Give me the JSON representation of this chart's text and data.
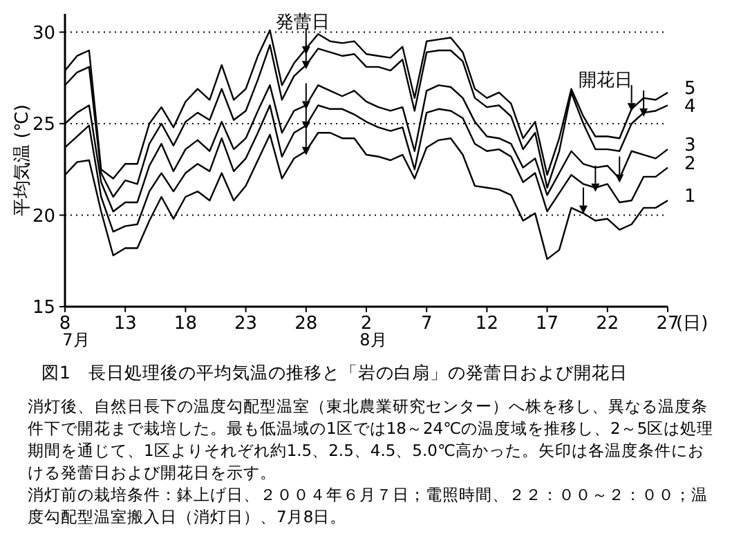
{
  "chart_data": {
    "type": "line",
    "title": "図1　長日処理後の平均気温の推移と「岩の白扇」の発蕾日および開花日",
    "xlabel": "(日)",
    "ylabel": "平均気温 (℃)",
    "x": [
      "--07-08",
      "--07-09",
      "--07-10",
      "--07-11",
      "--07-12",
      "--07-13",
      "--07-14",
      "--07-15",
      "--07-16",
      "--07-17",
      "--07-18",
      "--07-19",
      "--07-20",
      "--07-21",
      "--07-22",
      "--07-23",
      "--07-24",
      "--07-25",
      "--07-26",
      "--07-27",
      "--07-28",
      "--07-29",
      "--07-30",
      "--07-31",
      "--08-01",
      "--08-02",
      "--08-03",
      "--08-04",
      "--08-05",
      "--08-06",
      "--08-07",
      "--08-08",
      "--08-09",
      "--08-10",
      "--08-11",
      "--08-12",
      "--08-13",
      "--08-14",
      "--08-15",
      "--08-16",
      "--08-17",
      "--08-18",
      "--08-19",
      "--08-20",
      "--08-21",
      "--08-22",
      "--08-23",
      "--08-24",
      "--08-25",
      "--08-26",
      "--08-27"
    ],
    "series": [
      {
        "name": "1",
        "color": "#000000",
        "values": [
          22.2,
          22.9,
          23.0,
          20.2,
          17.8,
          18.2,
          18.2,
          19.7,
          21.0,
          19.8,
          21.0,
          21.3,
          20.8,
          22.3,
          20.8,
          21.6,
          23.0,
          24.4,
          22.0,
          23.1,
          23.5,
          24.5,
          24.5,
          24.2,
          24.2,
          23.3,
          23.2,
          23.0,
          23.3,
          22.0,
          23.7,
          24.1,
          24.2,
          23.3,
          21.6,
          21.5,
          21.4,
          21.1,
          19.7,
          20.1,
          17.6,
          18.1,
          20.4,
          20.1,
          19.7,
          19.8,
          19.2,
          19.5,
          20.4,
          20.4,
          20.8
        ]
      },
      {
        "name": "2",
        "color": "#000000",
        "values": [
          23.7,
          24.3,
          24.9,
          21.0,
          19.1,
          19.4,
          19.5,
          21.3,
          22.3,
          21.3,
          22.3,
          22.8,
          22.4,
          24.2,
          22.4,
          23.1,
          24.5,
          26.0,
          23.2,
          24.5,
          24.9,
          26.0,
          25.8,
          25.8,
          25.5,
          25.1,
          24.8,
          24.6,
          24.8,
          22.5,
          25.6,
          25.8,
          25.7,
          25.3,
          23.9,
          23.5,
          23.6,
          23.2,
          21.8,
          22.3,
          20.2,
          21.2,
          22.2,
          21.7,
          21.5,
          21.7,
          20.7,
          20.8,
          22.1,
          22.1,
          22.6
        ]
      },
      {
        "name": "3",
        "color": "#000000",
        "values": [
          25.0,
          25.6,
          26.0,
          21.8,
          20.2,
          20.7,
          20.7,
          22.7,
          23.9,
          22.4,
          23.6,
          24.1,
          23.5,
          25.1,
          23.6,
          24.2,
          25.7,
          27.1,
          24.5,
          25.7,
          26.0,
          27.1,
          26.8,
          26.5,
          26.8,
          26.2,
          25.9,
          25.7,
          25.9,
          23.5,
          26.8,
          27.1,
          27.0,
          26.4,
          25.1,
          24.3,
          24.2,
          23.9,
          22.6,
          23.1,
          21.1,
          22.3,
          23.5,
          22.8,
          22.6,
          22.7,
          22.0,
          23.5,
          23.3,
          23.1,
          23.6
        ]
      },
      {
        "name": "4",
        "color": "#000000",
        "values": [
          27.1,
          27.8,
          28.1,
          22.3,
          21.0,
          21.9,
          21.7,
          23.9,
          25.0,
          23.8,
          25.1,
          25.6,
          25.2,
          26.9,
          25.2,
          25.7,
          27.4,
          29.3,
          26.3,
          27.6,
          28.2,
          29.1,
          28.9,
          28.7,
          28.8,
          28.1,
          28.1,
          27.9,
          28.5,
          25.7,
          28.9,
          29.0,
          29.0,
          28.4,
          26.4,
          25.9,
          26.0,
          25.4,
          23.6,
          24.5,
          21.5,
          23.5,
          26.7,
          25.0,
          23.6,
          23.6,
          23.5,
          25.0,
          25.6,
          25.7,
          26.0
        ]
      },
      {
        "name": "5",
        "color": "#000000",
        "values": [
          27.9,
          28.7,
          29.0,
          22.5,
          22.0,
          22.8,
          22.8,
          25.0,
          25.9,
          24.8,
          26.2,
          26.9,
          26.3,
          28.2,
          26.3,
          26.9,
          28.7,
          30.1,
          27.1,
          28.3,
          29.1,
          29.9,
          29.5,
          29.4,
          29.5,
          28.8,
          28.7,
          28.6,
          29.2,
          26.4,
          29.5,
          29.6,
          29.7,
          28.9,
          26.9,
          26.4,
          26.7,
          26.1,
          24.2,
          25.1,
          22.2,
          24.2,
          26.9,
          25.4,
          24.3,
          24.3,
          24.2,
          25.8,
          26.4,
          26.3,
          26.7
        ]
      },
      {
        "type": "scatter",
        "marker": "triangle",
        "color": "#000000",
        "x": [
          "--07-28",
          "--07-28",
          "--07-28",
          "--07-28",
          "--07-28"
        ],
        "values": [
          29.0,
          28.2,
          26.0,
          24.9,
          23.5
        ]
      },
      {
        "type": "scatter",
        "marker": "triangle",
        "color": "#000000",
        "x": [
          "--08-20",
          "--08-21",
          "--08-23",
          "--08-24",
          "--08-25"
        ],
        "values": [
          20.3,
          21.5,
          22.0,
          25.9,
          25.6
        ]
      }
    ],
    "xlim": [
      "--07-08",
      "--08-27"
    ],
    "xticks": [
      {
        "value": "--07-08",
        "label": "8"
      },
      {
        "value": "--07-13",
        "label": "13"
      },
      {
        "value": "--07-18",
        "label": "18"
      },
      {
        "value": "--07-23",
        "label": "23"
      },
      {
        "value": "--07-28",
        "label": "28"
      },
      {
        "value": "--08-02",
        "label": "2"
      },
      {
        "value": "--08-07",
        "label": "7"
      },
      {
        "value": "--08-12",
        "label": "12"
      },
      {
        "value": "--08-17",
        "label": "17"
      },
      {
        "value": "--08-22",
        "label": "22"
      },
      {
        "value": "--08-27",
        "label": "27"
      }
    ],
    "ylim": [
      15,
      31
    ],
    "yticks": [
      15,
      20,
      25,
      30
    ],
    "grid": "y",
    "legend": "right",
    "line_style": "solid",
    "annotations": [
      "発蕾日",
      "開花日",
      "7月",
      "8月",
      "消灯後、自然日長下の温度勾配型温室（東北農業研究センター）へ株を移し、異なる温度条件下で開花まで栽培した。最も低温域の1区では18～24℃の温度域を推移し、2～5区は処理期間を通じて、1区よりそれぞれ約1.5、2.5、4.5、5.0℃高かった。矢印は各温度条件における発蕾日および開花日を示す。",
      "消灯前の栽培条件：鉢上げ日、２００４年６月７日；電照時間、２２：００～２：００；温度勾配型温室搬入日（消灯日）、7月8日。"
    ]
  }
}
